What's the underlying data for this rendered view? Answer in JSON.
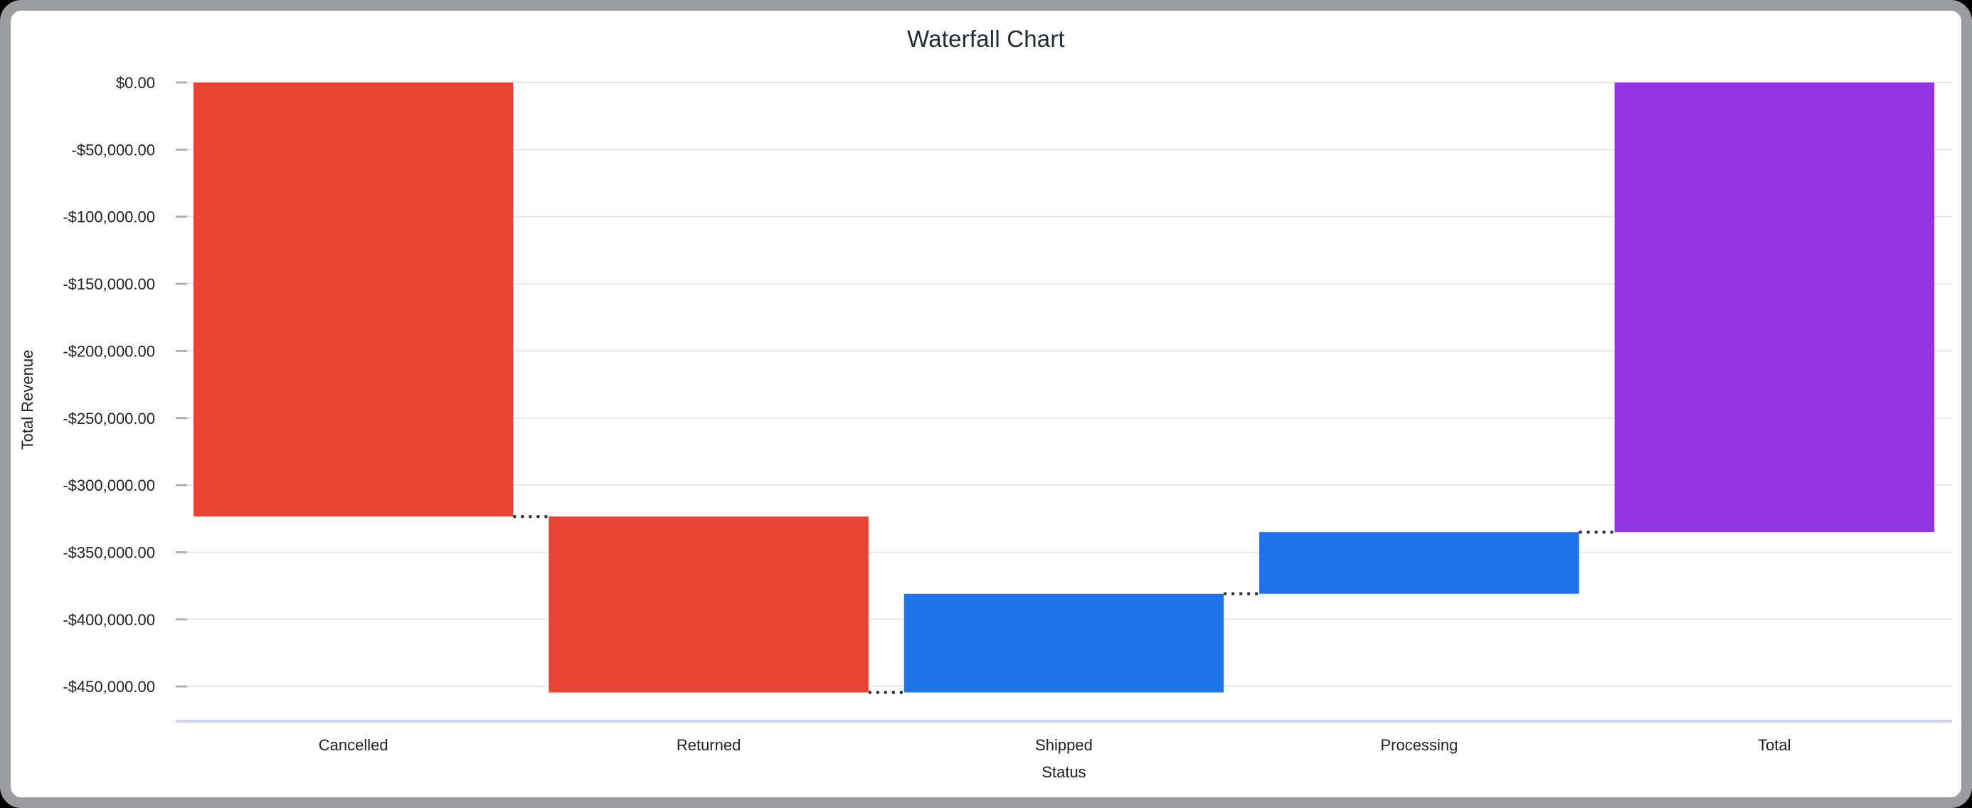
{
  "window": {
    "kind": "rounded chart card on dark background"
  },
  "chart_data": {
    "type": "waterfall",
    "title": "Waterfall Chart",
    "xlabel": "Status",
    "ylabel": "Total Revenue",
    "categories": [
      "Cancelled",
      "Returned",
      "Shipped",
      "Processing",
      "Total"
    ],
    "series": [
      {
        "name": "Cancelled",
        "delta": -323400,
        "start": 0,
        "end": -323400,
        "role": "decrease"
      },
      {
        "name": "Returned",
        "delta": -131000,
        "start": -323400,
        "end": -454400,
        "role": "decrease"
      },
      {
        "name": "Shipped",
        "delta": 73500,
        "start": -454400,
        "end": -380900,
        "role": "increase"
      },
      {
        "name": "Processing",
        "delta": 45900,
        "start": -380900,
        "end": -335000,
        "role": "increase"
      },
      {
        "name": "Total",
        "delta": -335000,
        "start": 0,
        "end": -335000,
        "role": "total"
      }
    ],
    "y_axis": {
      "max": 0,
      "min": -476000,
      "tick_step": 50000,
      "tick_labels": [
        "$0.00",
        "-$50,000.00",
        "-$100,000.00",
        "-$150,000.00",
        "-$200,000.00",
        "-$250,000.00",
        "-$300,000.00",
        "-$350,000.00",
        "-$400,000.00",
        "-$450,000.00"
      ]
    },
    "grid": true,
    "legend": "none",
    "connector_style": "dotted"
  },
  "colors": {
    "background": "#000000",
    "frame": "#9b9ca0",
    "card": "#ffffff",
    "title_text": "#252b33",
    "axis_text": "#202124",
    "gridline": "#e8e8e8",
    "tick": "#aab0b6",
    "baseline": "#ccd5e5",
    "connector": "#2a2a2a",
    "decrease": "#e94335",
    "increase": "#1d73e8",
    "total": "#9234e3"
  }
}
